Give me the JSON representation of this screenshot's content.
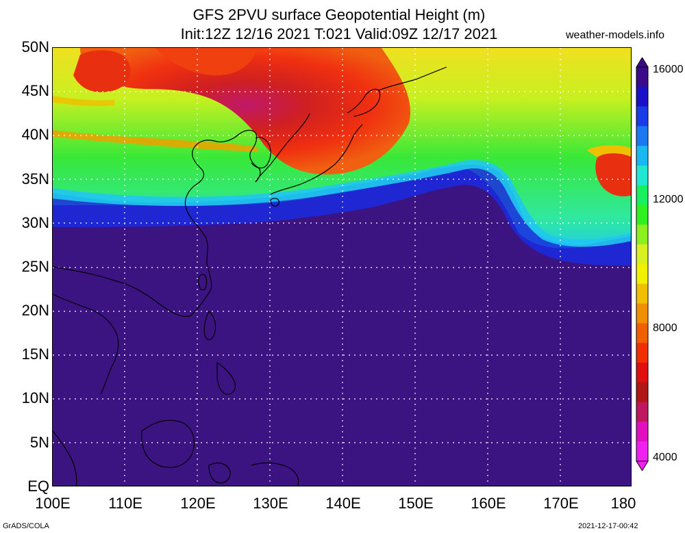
{
  "header": {
    "title_line1": "GFS 2PVU surface Geopotential Height (m)",
    "title_line2": "Init:12Z 12/16 2021 T:021 Valid:09Z 12/17 2021",
    "site": "weather-models.info"
  },
  "axes": {
    "lat_labels": [
      "50N",
      "45N",
      "40N",
      "35N",
      "30N",
      "25N",
      "20N",
      "15N",
      "10N",
      "5N",
      "EQ"
    ],
    "lon_labels": [
      "100E",
      "110E",
      "120E",
      "130E",
      "140E",
      "150E",
      "160E",
      "170E",
      "180"
    ],
    "lat_range": [
      0,
      50
    ],
    "lon_range": [
      100,
      180
    ]
  },
  "colorbar": {
    "labels": [
      "16000",
      "12000",
      "8000",
      "4000"
    ],
    "colors": [
      "#3a0a8a",
      "#1a10c8",
      "#1a3ce8",
      "#1a78f0",
      "#1ab8f0",
      "#20e8d0",
      "#18f060",
      "#30f020",
      "#8cf020",
      "#d8f020",
      "#f0f000",
      "#f0c000",
      "#f09000",
      "#f06000",
      "#f03000",
      "#e01010",
      "#b01818",
      "#c01860",
      "#e010c0",
      "#f020f0"
    ],
    "range": [
      4000,
      16000
    ]
  },
  "map_colors": {
    "tropics": "#3c1482",
    "subtropical_jet_band": "#1a2ae0",
    "mid_lat": "#40e840",
    "high_low_trough": "#e83010",
    "grid_line": "#ffffff",
    "coast_line": "#000000"
  },
  "footer": {
    "left": "GrADS/COLA",
    "right": "2021-12-17-00:42"
  }
}
